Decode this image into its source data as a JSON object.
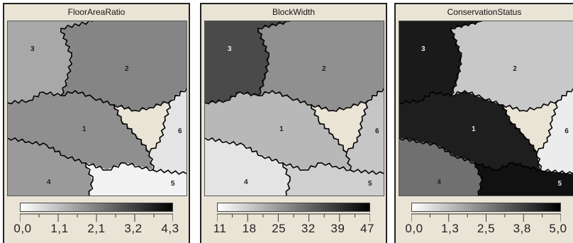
{
  "panels": [
    {
      "title": "FloorAreaRatio",
      "legend": {
        "low_color": "#ffffff",
        "high_color": "#000000",
        "labels": [
          "0,0",
          "1,1",
          "2,1",
          "3,2",
          "4,3"
        ]
      },
      "regions": [
        {
          "id": "1",
          "shade": "#8f8f8f"
        },
        {
          "id": "2",
          "shade": "#858585"
        },
        {
          "id": "3",
          "shade": "#a8a8a8"
        },
        {
          "id": "4",
          "shade": "#9a9a9a"
        },
        {
          "id": "5",
          "shade": "#f2f2f2"
        },
        {
          "id": "6",
          "shade": "#e4e4e4"
        }
      ]
    },
    {
      "title": "BlockWidth",
      "legend": {
        "low_color": "#ffffff",
        "high_color": "#000000",
        "labels": [
          "11",
          "18",
          "25",
          "32",
          "39",
          "47"
        ]
      },
      "regions": [
        {
          "id": "1",
          "shade": "#b8b8b8"
        },
        {
          "id": "2",
          "shade": "#909090"
        },
        {
          "id": "3",
          "shade": "#4a4a4a"
        },
        {
          "id": "4",
          "shade": "#e4e4e4"
        },
        {
          "id": "5",
          "shade": "#cfcfcf"
        },
        {
          "id": "6",
          "shade": "#c6c6c6"
        }
      ]
    },
    {
      "title": "ConservationStatus",
      "legend": {
        "low_color": "#ffffff",
        "high_color": "#000000",
        "labels": [
          "0,0",
          "1,3",
          "2,5",
          "3,8",
          "5,0"
        ]
      },
      "regions": [
        {
          "id": "1",
          "shade": "#1e1e1e"
        },
        {
          "id": "2",
          "shade": "#c8c8c8"
        },
        {
          "id": "3",
          "shade": "#1a1a1a"
        },
        {
          "id": "4",
          "shade": "#707070"
        },
        {
          "id": "5",
          "shade": "#111111"
        },
        {
          "id": "6",
          "shade": "#ececec"
        }
      ]
    }
  ]
}
